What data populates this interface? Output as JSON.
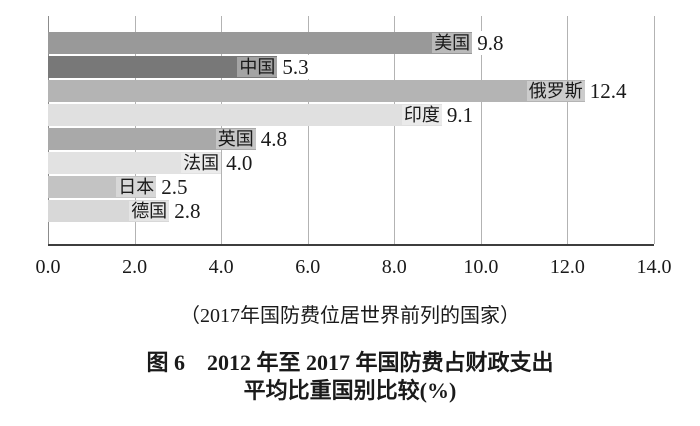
{
  "chart_data": {
    "type": "bar",
    "orientation": "horizontal",
    "categories": [
      "美国",
      "中国",
      "俄罗斯",
      "印度",
      "英国",
      "法国",
      "日本",
      "德国"
    ],
    "values": [
      9.8,
      5.3,
      12.4,
      9.1,
      4.8,
      4.0,
      2.5,
      2.8
    ],
    "value_labels": [
      "9.8",
      "5.3",
      "12.4",
      "9.1",
      "4.8",
      "4.0",
      "2.5",
      "2.8"
    ],
    "bar_colors": [
      "#999999",
      "#787878",
      "#b4b4b4",
      "#e0e0e0",
      "#a9a9a9",
      "#e2e2e2",
      "#c3c3c3",
      "#d8d8d8"
    ],
    "xlim": [
      0,
      14
    ],
    "x_ticks": [
      "0.0",
      "2.0",
      "4.0",
      "6.0",
      "8.0",
      "10.0",
      "12.0",
      "14.0"
    ],
    "grid": "vertical",
    "legend": "none",
    "note": "（2017年国防费位居世界前列的国家）",
    "title_line1": "图 6　2012 年至 2017 年国防费占财政支出",
    "title_line2": "平均比重国别比较(%)",
    "colors": {
      "grid": "#b3b3b3",
      "y_axis_line": "#8c8c8c",
      "x_axis_line": "#3d3d3d",
      "background": "#ffffff",
      "text": "#1a1a1a"
    }
  }
}
